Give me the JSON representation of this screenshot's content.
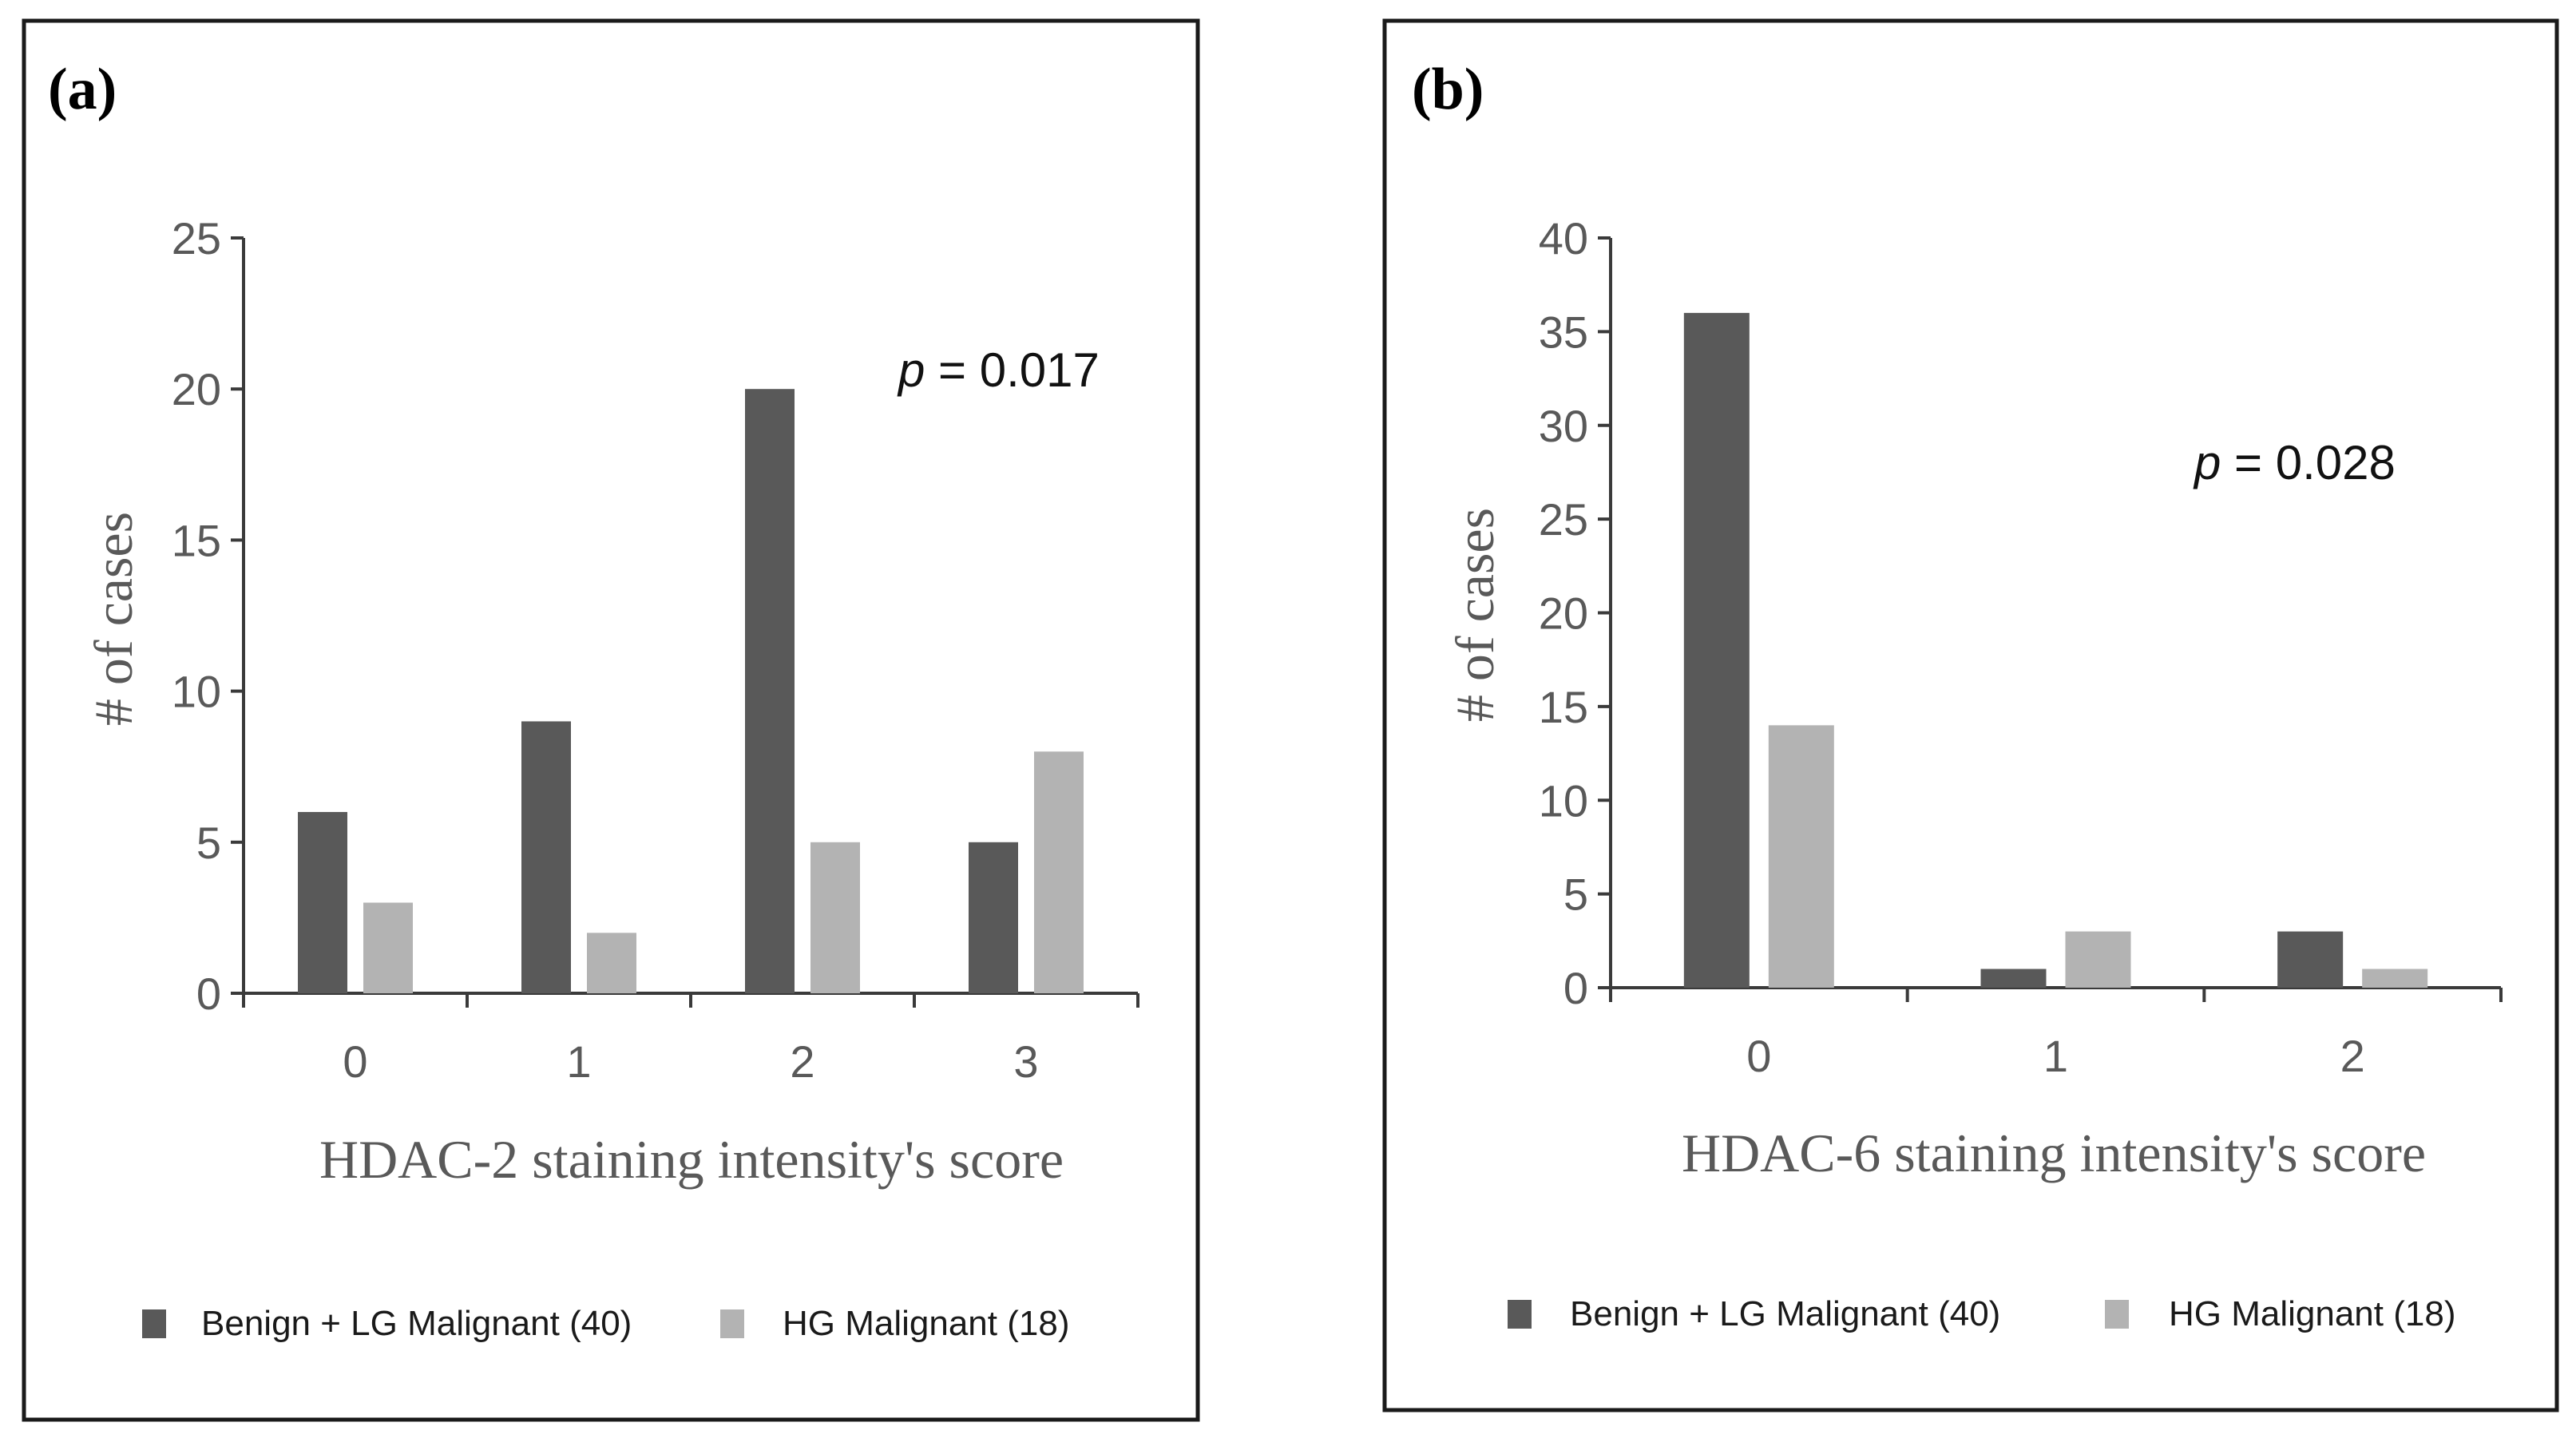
{
  "colors": {
    "series_dark": "#595959",
    "series_light": "#b3b3b3",
    "axis": "#3a3a3a",
    "frame": "#1a1a1a"
  },
  "chart_data": [
    {
      "type": "bar",
      "panel": "(a)",
      "title": "",
      "xlabel": "HDAC-2 staining intensity's score",
      "ylabel": "# of cases",
      "categories": [
        "0",
        "1",
        "2",
        "3"
      ],
      "ylim": [
        0,
        25
      ],
      "yticks": [
        "0",
        "5",
        "10",
        "15",
        "20",
        "25"
      ],
      "series": [
        {
          "name": "Benign + LG Malignant (40)",
          "values": [
            6,
            9,
            20,
            5
          ]
        },
        {
          "name": "HG Malignant (18)",
          "values": [
            3,
            2,
            5,
            8
          ]
        }
      ],
      "annotation": {
        "p_symbol": "p",
        "p_text": " = 0.017"
      },
      "legend": "bottom"
    },
    {
      "type": "bar",
      "panel": "(b)",
      "title": "",
      "xlabel": "HDAC-6 staining intensity's score",
      "ylabel": "# of cases",
      "categories": [
        "0",
        "1",
        "2"
      ],
      "ylim": [
        0,
        40
      ],
      "yticks": [
        "0",
        "5",
        "10",
        "15",
        "20",
        "25",
        "30",
        "35",
        "40"
      ],
      "series": [
        {
          "name": "Benign + LG Malignant (40)",
          "values": [
            36,
            1,
            3
          ]
        },
        {
          "name": "HG Malignant (18)",
          "values": [
            14,
            3,
            1
          ]
        }
      ],
      "annotation": {
        "p_symbol": "p",
        "p_text": " = 0.028"
      },
      "legend": "bottom"
    }
  ]
}
